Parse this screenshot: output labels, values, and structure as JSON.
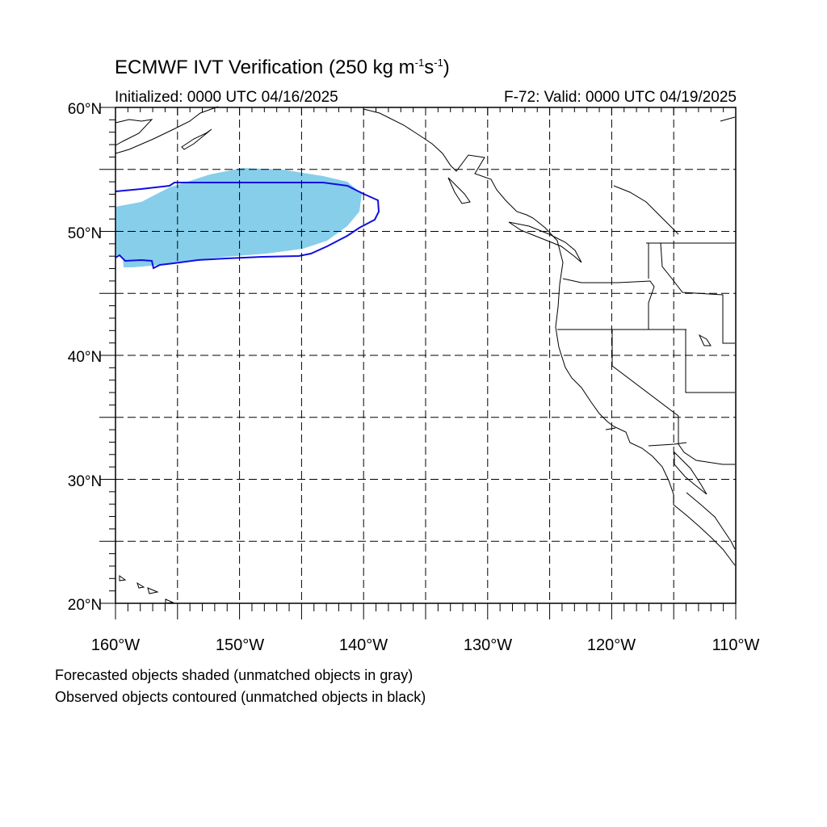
{
  "title": {
    "prefix": "ECMWF IVT Verification (250 kg m",
    "exp1": "-1",
    "mid": "s",
    "exp2": "-1",
    "suffix": ")"
  },
  "initialized": "Initialized: 0000 UTC 04/16/2025",
  "valid": "F-72: Valid: 0000 UTC 04/19/2025",
  "lat_labels": [
    "60°N",
    "50°N",
    "40°N",
    "30°N",
    "20°N"
  ],
  "lon_labels": [
    "160°W",
    "150°W",
    "140°W",
    "130°W",
    "120°W",
    "110°W"
  ],
  "footnotes": [
    "Forecasted objects shaded (unmatched objects in gray)",
    "Observed objects contoured (unmatched objects in black)"
  ],
  "colors": {
    "forecast_fill": "#87ceeb",
    "observed_contour": "#1010e0",
    "coastline": "#000000",
    "grid": "#000000"
  }
}
